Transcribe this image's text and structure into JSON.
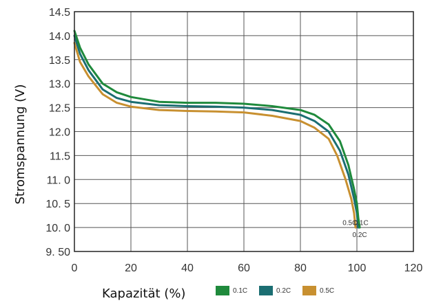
{
  "chart_data": {
    "type": "line",
    "xlabel": "Kapazität (%)",
    "ylabel": "Stromspannung (V)",
    "xlim": [
      0,
      120
    ],
    "ylim": [
      9.5,
      14.5
    ],
    "x_ticks": [
      "0",
      "20",
      "40",
      "60",
      "80",
      "100",
      "120"
    ],
    "y_ticks": [
      "9. 50",
      "10. 0",
      "10. 5",
      "11. 0",
      "11.5",
      "12.0",
      "12.5",
      "13.0",
      "13.5",
      "14.0",
      "14.5"
    ],
    "grid": true,
    "legend_position": "bottom",
    "series": [
      {
        "name": "0.1C",
        "color": "#1f8a3c",
        "x": [
          0,
          2,
          5,
          10,
          15,
          20,
          30,
          40,
          50,
          60,
          70,
          80,
          85,
          90,
          94,
          97,
          99,
          100,
          100.5,
          101
        ],
        "y": [
          14.1,
          13.75,
          13.4,
          13.0,
          12.82,
          12.72,
          12.62,
          12.6,
          12.6,
          12.58,
          12.53,
          12.45,
          12.35,
          12.15,
          11.8,
          11.3,
          10.8,
          10.5,
          10.2,
          10.0
        ]
      },
      {
        "name": "0.2C",
        "color": "#1b6e72",
        "x": [
          0,
          2,
          5,
          10,
          15,
          20,
          30,
          40,
          50,
          60,
          70,
          80,
          85,
          90,
          94,
          97,
          99,
          100,
          100.5
        ],
        "y": [
          14.0,
          13.62,
          13.28,
          12.88,
          12.7,
          12.62,
          12.55,
          12.53,
          12.52,
          12.5,
          12.45,
          12.35,
          12.22,
          12.0,
          11.6,
          11.1,
          10.6,
          10.3,
          10.0
        ]
      },
      {
        "name": "0.5C",
        "color": "#c89030",
        "x": [
          0,
          2,
          5,
          10,
          15,
          20,
          30,
          40,
          50,
          60,
          70,
          80,
          85,
          90,
          93,
          96,
          98,
          99,
          99.5
        ],
        "y": [
          13.85,
          13.45,
          13.15,
          12.78,
          12.6,
          12.52,
          12.45,
          12.43,
          12.42,
          12.4,
          12.33,
          12.22,
          12.08,
          11.85,
          11.5,
          11.0,
          10.6,
          10.3,
          10.0
        ]
      }
    ],
    "annotations": [
      {
        "text": "0.5C",
        "x": 97.5,
        "y": 10.05
      },
      {
        "text": "0.1C",
        "x": 101.5,
        "y": 10.05
      },
      {
        "text": "0.2C",
        "x": 101,
        "y": 9.8
      }
    ]
  },
  "legend": [
    {
      "label": "0.1C",
      "color": "#1f8a3c"
    },
    {
      "label": "0.2C",
      "color": "#1b6e72"
    },
    {
      "label": "0.5C",
      "color": "#c89030"
    }
  ]
}
